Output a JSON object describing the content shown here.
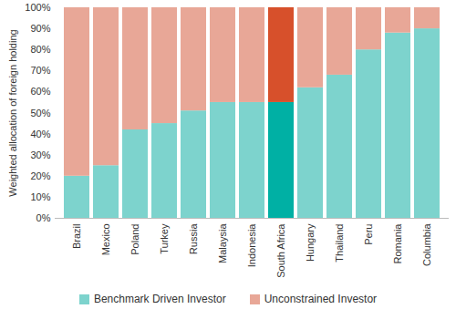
{
  "chart_data": {
    "type": "bar",
    "stacked": true,
    "categories": [
      "Brazil",
      "Mexico",
      "Poland",
      "Turkey",
      "Russia",
      "Malaysia",
      "Indonesia",
      "South Africa",
      "Hungary",
      "Thailand",
      "Peru",
      "Romania",
      "Columbia"
    ],
    "series": [
      {
        "name": "Benchmark Driven Investor",
        "color": "#7dd3cd",
        "colors": [
          "#7dd3cd",
          "#7dd3cd",
          "#7dd3cd",
          "#7dd3cd",
          "#7dd3cd",
          "#7dd3cd",
          "#7dd3cd",
          "#00b0a4",
          "#7dd3cd",
          "#7dd3cd",
          "#7dd3cd",
          "#7dd3cd",
          "#7dd3cd"
        ],
        "values": [
          20,
          25,
          42,
          45,
          51,
          55,
          55,
          55,
          62,
          68,
          80,
          88,
          90
        ]
      },
      {
        "name": "Unconstrained Investor",
        "color": "#e8a797",
        "colors": [
          "#e8a797",
          "#e8a797",
          "#e8a797",
          "#e8a797",
          "#e8a797",
          "#e8a797",
          "#e8a797",
          "#d7502b",
          "#e8a797",
          "#e8a797",
          "#e8a797",
          "#e8a797",
          "#e8a797"
        ],
        "values": [
          80,
          75,
          58,
          55,
          49,
          45,
          45,
          45,
          38,
          32,
          20,
          12,
          10
        ]
      }
    ],
    "ylabel": "Weighted allocation of foreign holding",
    "ylim": [
      0,
      100
    ],
    "yticks": [
      {
        "value": 0,
        "label": "0%"
      },
      {
        "value": 10,
        "label": "10%"
      },
      {
        "value": 20,
        "label": "20%"
      },
      {
        "value": 30,
        "label": "30%"
      },
      {
        "value": 40,
        "label": "40%"
      },
      {
        "value": 50,
        "label": "50%"
      },
      {
        "value": 60,
        "label": "60%"
      },
      {
        "value": 70,
        "label": "70%"
      },
      {
        "value": 80,
        "label": "80%"
      },
      {
        "value": 90,
        "label": "90%"
      },
      {
        "value": 100,
        "label": "100%"
      }
    ],
    "grid": false,
    "legend": "bottom"
  }
}
